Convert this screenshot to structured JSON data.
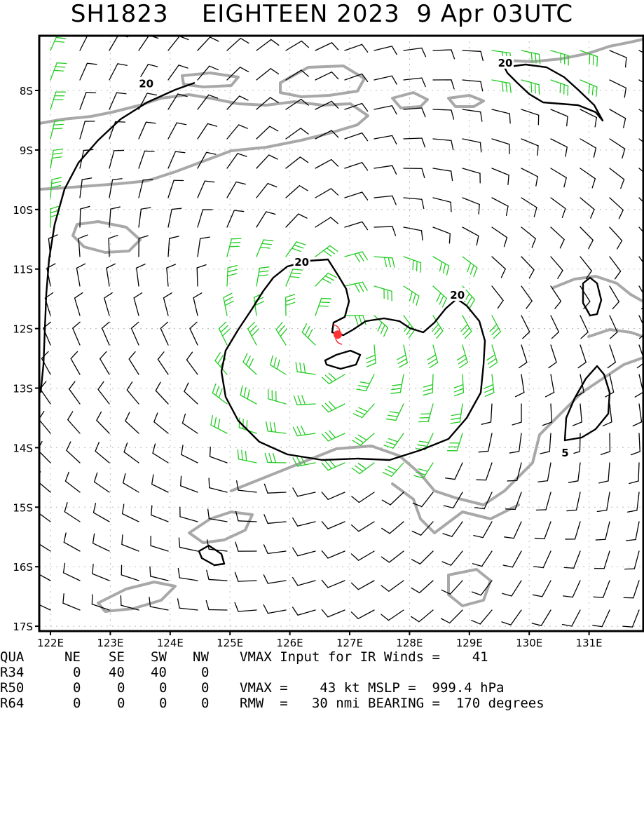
{
  "title": "SH1823    EIGHTEEN 2023  9 Apr 03UTC",
  "map": {
    "lon_labels": [
      "122E",
      "123E",
      "124E",
      "125E",
      "126E",
      "127E",
      "128E",
      "129E",
      "130E",
      "131E"
    ],
    "lat_labels": [
      "8S",
      "9S",
      "10S",
      "11S",
      "12S",
      "13S",
      "14S",
      "15S",
      "16S",
      "17S"
    ],
    "contour_labels": [
      {
        "text": "20",
        "lon": 123.6,
        "lat": 7.9
      },
      {
        "text": "20",
        "lon": 129.6,
        "lat": 7.55
      },
      {
        "text": "20",
        "lon": 126.2,
        "lat": 10.9
      },
      {
        "text": "20",
        "lon": 128.8,
        "lat": 11.45
      },
      {
        "text": "5",
        "lon": 130.6,
        "lat": 14.1
      }
    ],
    "center": {
      "lon": 126.8,
      "lat": 12.1
    },
    "colors": {
      "land": "#a8a8a8",
      "barb": "#000000",
      "gale_barb": "#22cc22",
      "contour": "#000000",
      "storm": "#ff3333"
    }
  },
  "table": {
    "header": [
      "QUA",
      "NE",
      "SE",
      "SW",
      "NW"
    ],
    "rows": [
      {
        "label": "R34",
        "values": [
          "0",
          "40",
          "40",
          "0"
        ]
      },
      {
        "label": "R50",
        "values": [
          "0",
          "0",
          "0",
          "0"
        ]
      },
      {
        "label": "R64",
        "values": [
          "0",
          "0",
          "0",
          "0"
        ]
      }
    ],
    "info": [
      "VMAX Input for IR Winds =    41",
      "",
      "VMAX =    43 kt MSLP =  999.4 hPa",
      "RMW  =   30 nmi BEARING =  170 degrees"
    ]
  }
}
